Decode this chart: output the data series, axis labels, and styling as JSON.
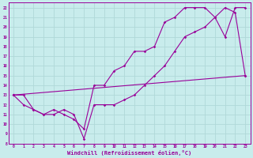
{
  "xlabel": "Windchill (Refroidissement éolien,°C)",
  "background_color": "#c8ecec",
  "grid_color": "#b0d8d8",
  "line_color": "#990099",
  "xlim": [
    -0.5,
    23.5
  ],
  "ylim": [
    8,
    22.5
  ],
  "xticks": [
    0,
    1,
    2,
    3,
    4,
    5,
    6,
    7,
    8,
    9,
    10,
    11,
    12,
    13,
    14,
    15,
    16,
    17,
    18,
    19,
    20,
    21,
    22,
    23
  ],
  "yticks": [
    8,
    9,
    10,
    11,
    12,
    13,
    14,
    15,
    16,
    17,
    18,
    19,
    20,
    21,
    22
  ],
  "line1_x": [
    0,
    1,
    2,
    3,
    4,
    5,
    6,
    7,
    8,
    9,
    10,
    11,
    12,
    13,
    14,
    15,
    16,
    17,
    18,
    19,
    20,
    21,
    22,
    23
  ],
  "line1_y": [
    13,
    13,
    11.5,
    11,
    11,
    11.5,
    11,
    8.5,
    12,
    12,
    12,
    12.5,
    13,
    14,
    15,
    16,
    17.5,
    19,
    19.5,
    20,
    21,
    22,
    21.5,
    15
  ],
  "line2_x": [
    0,
    1,
    2,
    3,
    4,
    5,
    6,
    7,
    8,
    9,
    10,
    11,
    12,
    13,
    14,
    15,
    16,
    17,
    18,
    19,
    20,
    21,
    22,
    23
  ],
  "line2_y": [
    13,
    12,
    11.5,
    11.0,
    11.5,
    11.0,
    10.5,
    9.5,
    14.0,
    14.0,
    15.5,
    16.0,
    17.5,
    17.5,
    18.0,
    20.5,
    21.0,
    22.0,
    22.0,
    22.0,
    21.0,
    19.0,
    22.0,
    22.0
  ],
  "line3_x": [
    0,
    23
  ],
  "line3_y": [
    13,
    15
  ]
}
